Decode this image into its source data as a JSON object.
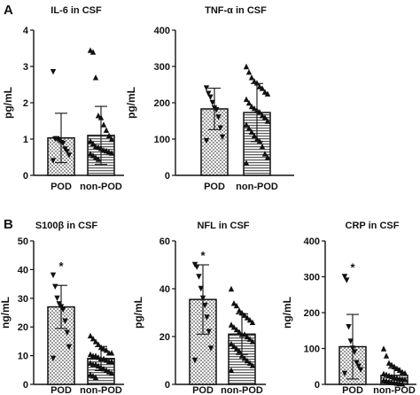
{
  "panel_labels": [
    "A",
    "B"
  ],
  "chart_data": [
    {
      "panel": "A",
      "type": "bar",
      "title": "IL-6 in CSF",
      "ylabel": "pg/mL",
      "ylim": [
        0,
        4
      ],
      "yticks": [
        "0",
        "1",
        "2",
        "3",
        "4"
      ],
      "categories": [
        "POD",
        "non-POD"
      ],
      "values": [
        1.03,
        1.1
      ],
      "sd": [
        0.68,
        0.8
      ],
      "significance": [
        "",
        ""
      ],
      "points": [
        [
          2.85,
          1.0,
          1.0,
          0.95,
          0.9,
          0.88,
          0.72,
          0.65,
          0.55,
          0.4
        ],
        [
          3.45,
          3.4,
          2.7,
          1.65,
          1.6,
          1.4,
          1.25,
          1.1,
          1.0,
          0.95,
          0.88,
          0.8,
          0.78,
          0.75,
          0.7,
          0.68,
          0.65,
          0.62,
          0.6,
          0.55,
          0.5,
          0.45
        ]
      ]
    },
    {
      "panel": "A",
      "type": "bar",
      "title": "TNF-α in CSF",
      "ylabel": "pg/mL",
      "ylim": [
        0,
        400
      ],
      "yticks": [
        "0",
        "100",
        "200",
        "300",
        "400"
      ],
      "categories": [
        "POD",
        "non-POD"
      ],
      "values": [
        183,
        173
      ],
      "sd": [
        57,
        80
      ],
      "significance": [
        "",
        ""
      ],
      "points": [
        [
          240,
          225,
          215,
          200,
          185,
          180,
          160,
          130,
          105,
          95
        ],
        [
          300,
          285,
          270,
          260,
          255,
          245,
          240,
          230,
          225,
          210,
          200,
          190,
          185,
          180,
          175,
          165,
          160,
          150,
          140,
          130,
          120,
          110,
          100,
          95,
          80,
          60,
          50,
          35
        ]
      ]
    },
    {
      "panel": "B",
      "type": "bar",
      "title": "S100β in CSF",
      "ylabel": "ng/mL",
      "ylim": [
        0,
        50
      ],
      "yticks": [
        "0",
        "10",
        "20",
        "30",
        "40",
        "50"
      ],
      "categories": [
        "POD",
        "non-POD"
      ],
      "values": [
        27,
        9
      ],
      "sd": [
        7.5,
        4.2
      ],
      "significance": [
        "*",
        ""
      ],
      "points": [
        [
          38,
          34,
          30,
          28,
          27,
          26,
          22,
          18,
          13,
          9
        ],
        [
          17,
          16,
          15,
          14,
          13,
          12.5,
          12,
          11,
          11,
          10.5,
          10,
          10,
          9.5,
          9,
          9,
          8.5,
          8,
          8,
          7.5,
          7,
          7,
          6.5,
          6,
          5.5,
          5,
          4.5,
          4,
          3.5,
          3,
          2.5
        ]
      ]
    },
    {
      "panel": "B",
      "type": "bar",
      "title": "NFL in CSF",
      "ylabel": "pg/mL",
      "ylim": [
        0,
        60
      ],
      "yticks": [
        "0",
        "20",
        "40",
        "60"
      ],
      "categories": [
        "POD",
        "non-POD"
      ],
      "values": [
        35.5,
        21
      ],
      "sd": [
        14.5,
        8.5
      ],
      "significance": [
        "*",
        ""
      ],
      "points": [
        [
          50,
          49,
          45,
          40,
          36,
          33,
          28,
          22,
          15,
          10
        ],
        [
          40,
          34,
          33,
          31,
          30,
          29,
          28,
          27,
          26,
          25,
          24,
          23,
          22,
          21,
          21,
          20,
          19,
          18,
          17,
          16,
          15,
          14,
          12,
          11,
          10,
          9,
          8,
          6
        ]
      ]
    },
    {
      "panel": "B",
      "type": "bar",
      "title": "CRP in CSF",
      "ylabel": "ng/mL",
      "ylim": [
        0,
        400
      ],
      "yticks": [
        "0",
        "100",
        "200",
        "300",
        "400"
      ],
      "categories": [
        "POD",
        "non-POD"
      ],
      "values": [
        105,
        25
      ],
      "sd": [
        90,
        20
      ],
      "significance": [
        "*",
        ""
      ],
      "points": [
        [
          300,
          290,
          160,
          120,
          100,
          90,
          60,
          50,
          40,
          30
        ],
        [
          100,
          80,
          60,
          55,
          50,
          45,
          40,
          35,
          32,
          30,
          28,
          25,
          22,
          20,
          18,
          16,
          15,
          14,
          12,
          10,
          8,
          6,
          5,
          4,
          3,
          2
        ]
      ]
    }
  ],
  "colors": {
    "ink": "#111111",
    "bar_fill": "#ffffff",
    "pod_pattern": "#9a9a9a",
    "nonpod_pattern": "#5f5f5f"
  }
}
